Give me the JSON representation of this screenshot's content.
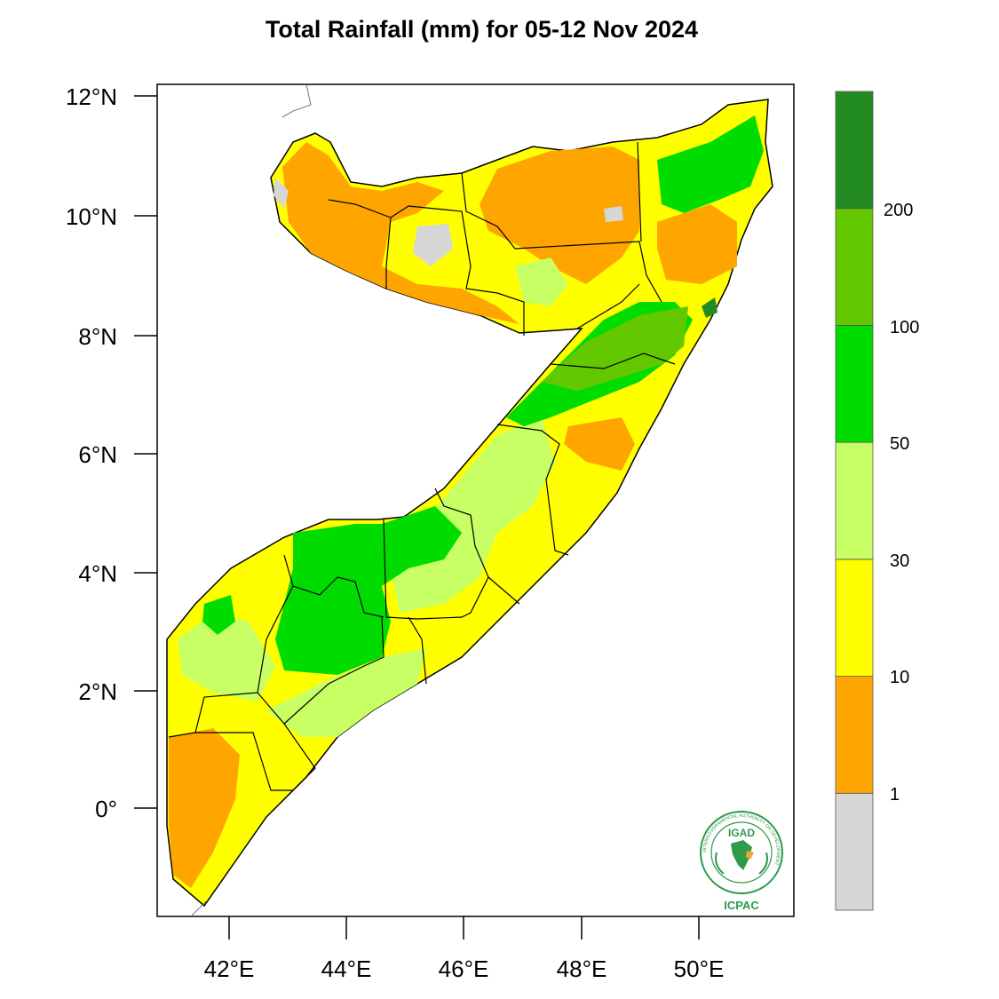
{
  "title": "Total Rainfall (mm) for 05-12 Nov 2024",
  "axes": {
    "y_ticks": [
      "12°N",
      "10°N",
      "8°N",
      "6°N",
      "4°N",
      "2°N",
      "0°"
    ],
    "x_ticks": [
      "42°E",
      "44°E",
      "46°E",
      "48°E",
      "50°E"
    ]
  },
  "legend": {
    "bins": [
      {
        "range": "<1",
        "color": "#d6d6d6"
      },
      {
        "range": "1-10",
        "color": "#ffa500"
      },
      {
        "range": "10-30",
        "color": "#ffff00"
      },
      {
        "range": "30-50",
        "color": "#c8ff64"
      },
      {
        "range": "50-100",
        "color": "#00dc00"
      },
      {
        "range": "100-200",
        "color": "#64c800"
      },
      {
        "range": ">200",
        "color": "#228b22"
      }
    ],
    "labels": [
      "1",
      "10",
      "30",
      "50",
      "100",
      "200"
    ]
  },
  "logo": {
    "name": "IGAD",
    "org": "ICPAC",
    "ring_text": "INTERGOVERNMENTAL AUTHORITY ON DEVELOPMENT"
  }
}
